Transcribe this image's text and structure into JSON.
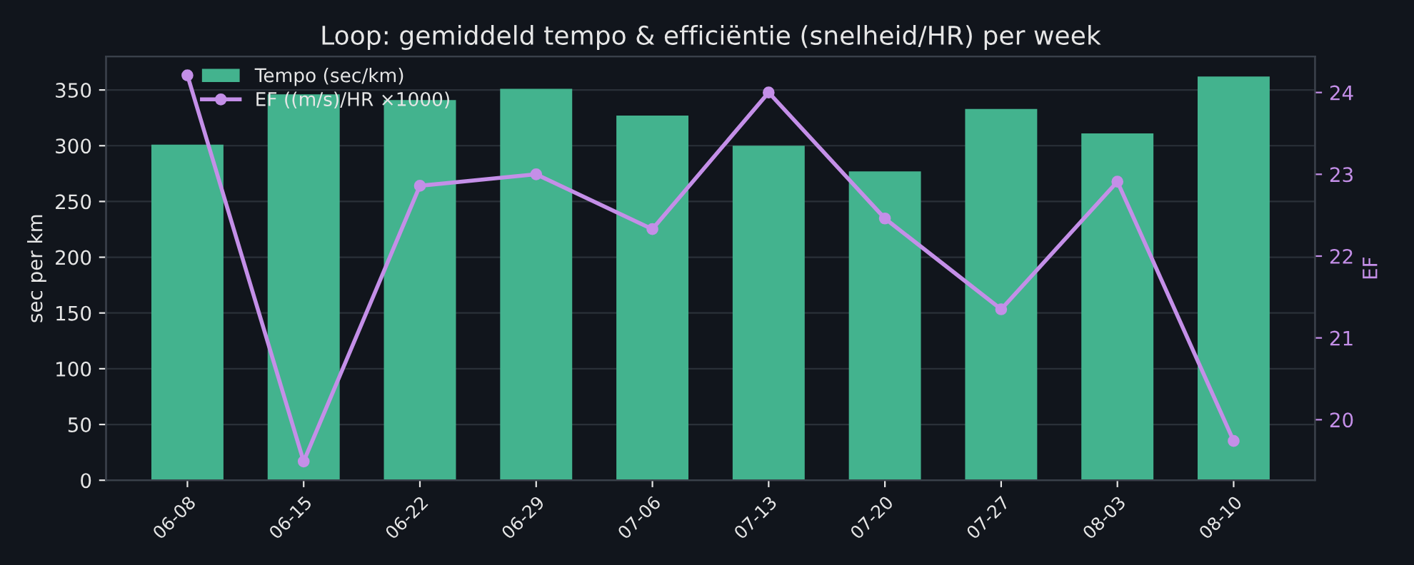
{
  "chart_data": {
    "type": "bar",
    "title": "Loop: gemiddeld tempo & efficiëntie (snelheid/HR) per week",
    "categories": [
      "06-08",
      "06-15",
      "06-22",
      "06-29",
      "07-06",
      "07-13",
      "07-20",
      "07-27",
      "08-03",
      "08-10"
    ],
    "series": [
      {
        "name": "Tempo (sec/km)",
        "color": "#43b38e",
        "values": [
          301,
          346,
          341,
          351,
          327,
          300,
          277,
          333,
          311,
          362
        ]
      },
      {
        "name": "EF ((m/s)/HR ×1000)",
        "type": "line",
        "axis": "y2",
        "color": "#c48fe8",
        "values": [
          24.21,
          19.49,
          22.86,
          23.0,
          22.33,
          24.0,
          22.46,
          21.35,
          22.91,
          19.74
        ]
      }
    ],
    "ylabel": "sec per km",
    "y2label": "EF",
    "ylim": [
      0,
      380
    ],
    "yticks": [
      0,
      50,
      100,
      150,
      200,
      250,
      300,
      350
    ],
    "y2lim": [
      19.26,
      24.44
    ],
    "y2ticks": [
      20,
      21,
      22,
      23,
      24
    ],
    "grid": "y",
    "legend": "top left",
    "marker": "circle",
    "line_style": "solid"
  }
}
